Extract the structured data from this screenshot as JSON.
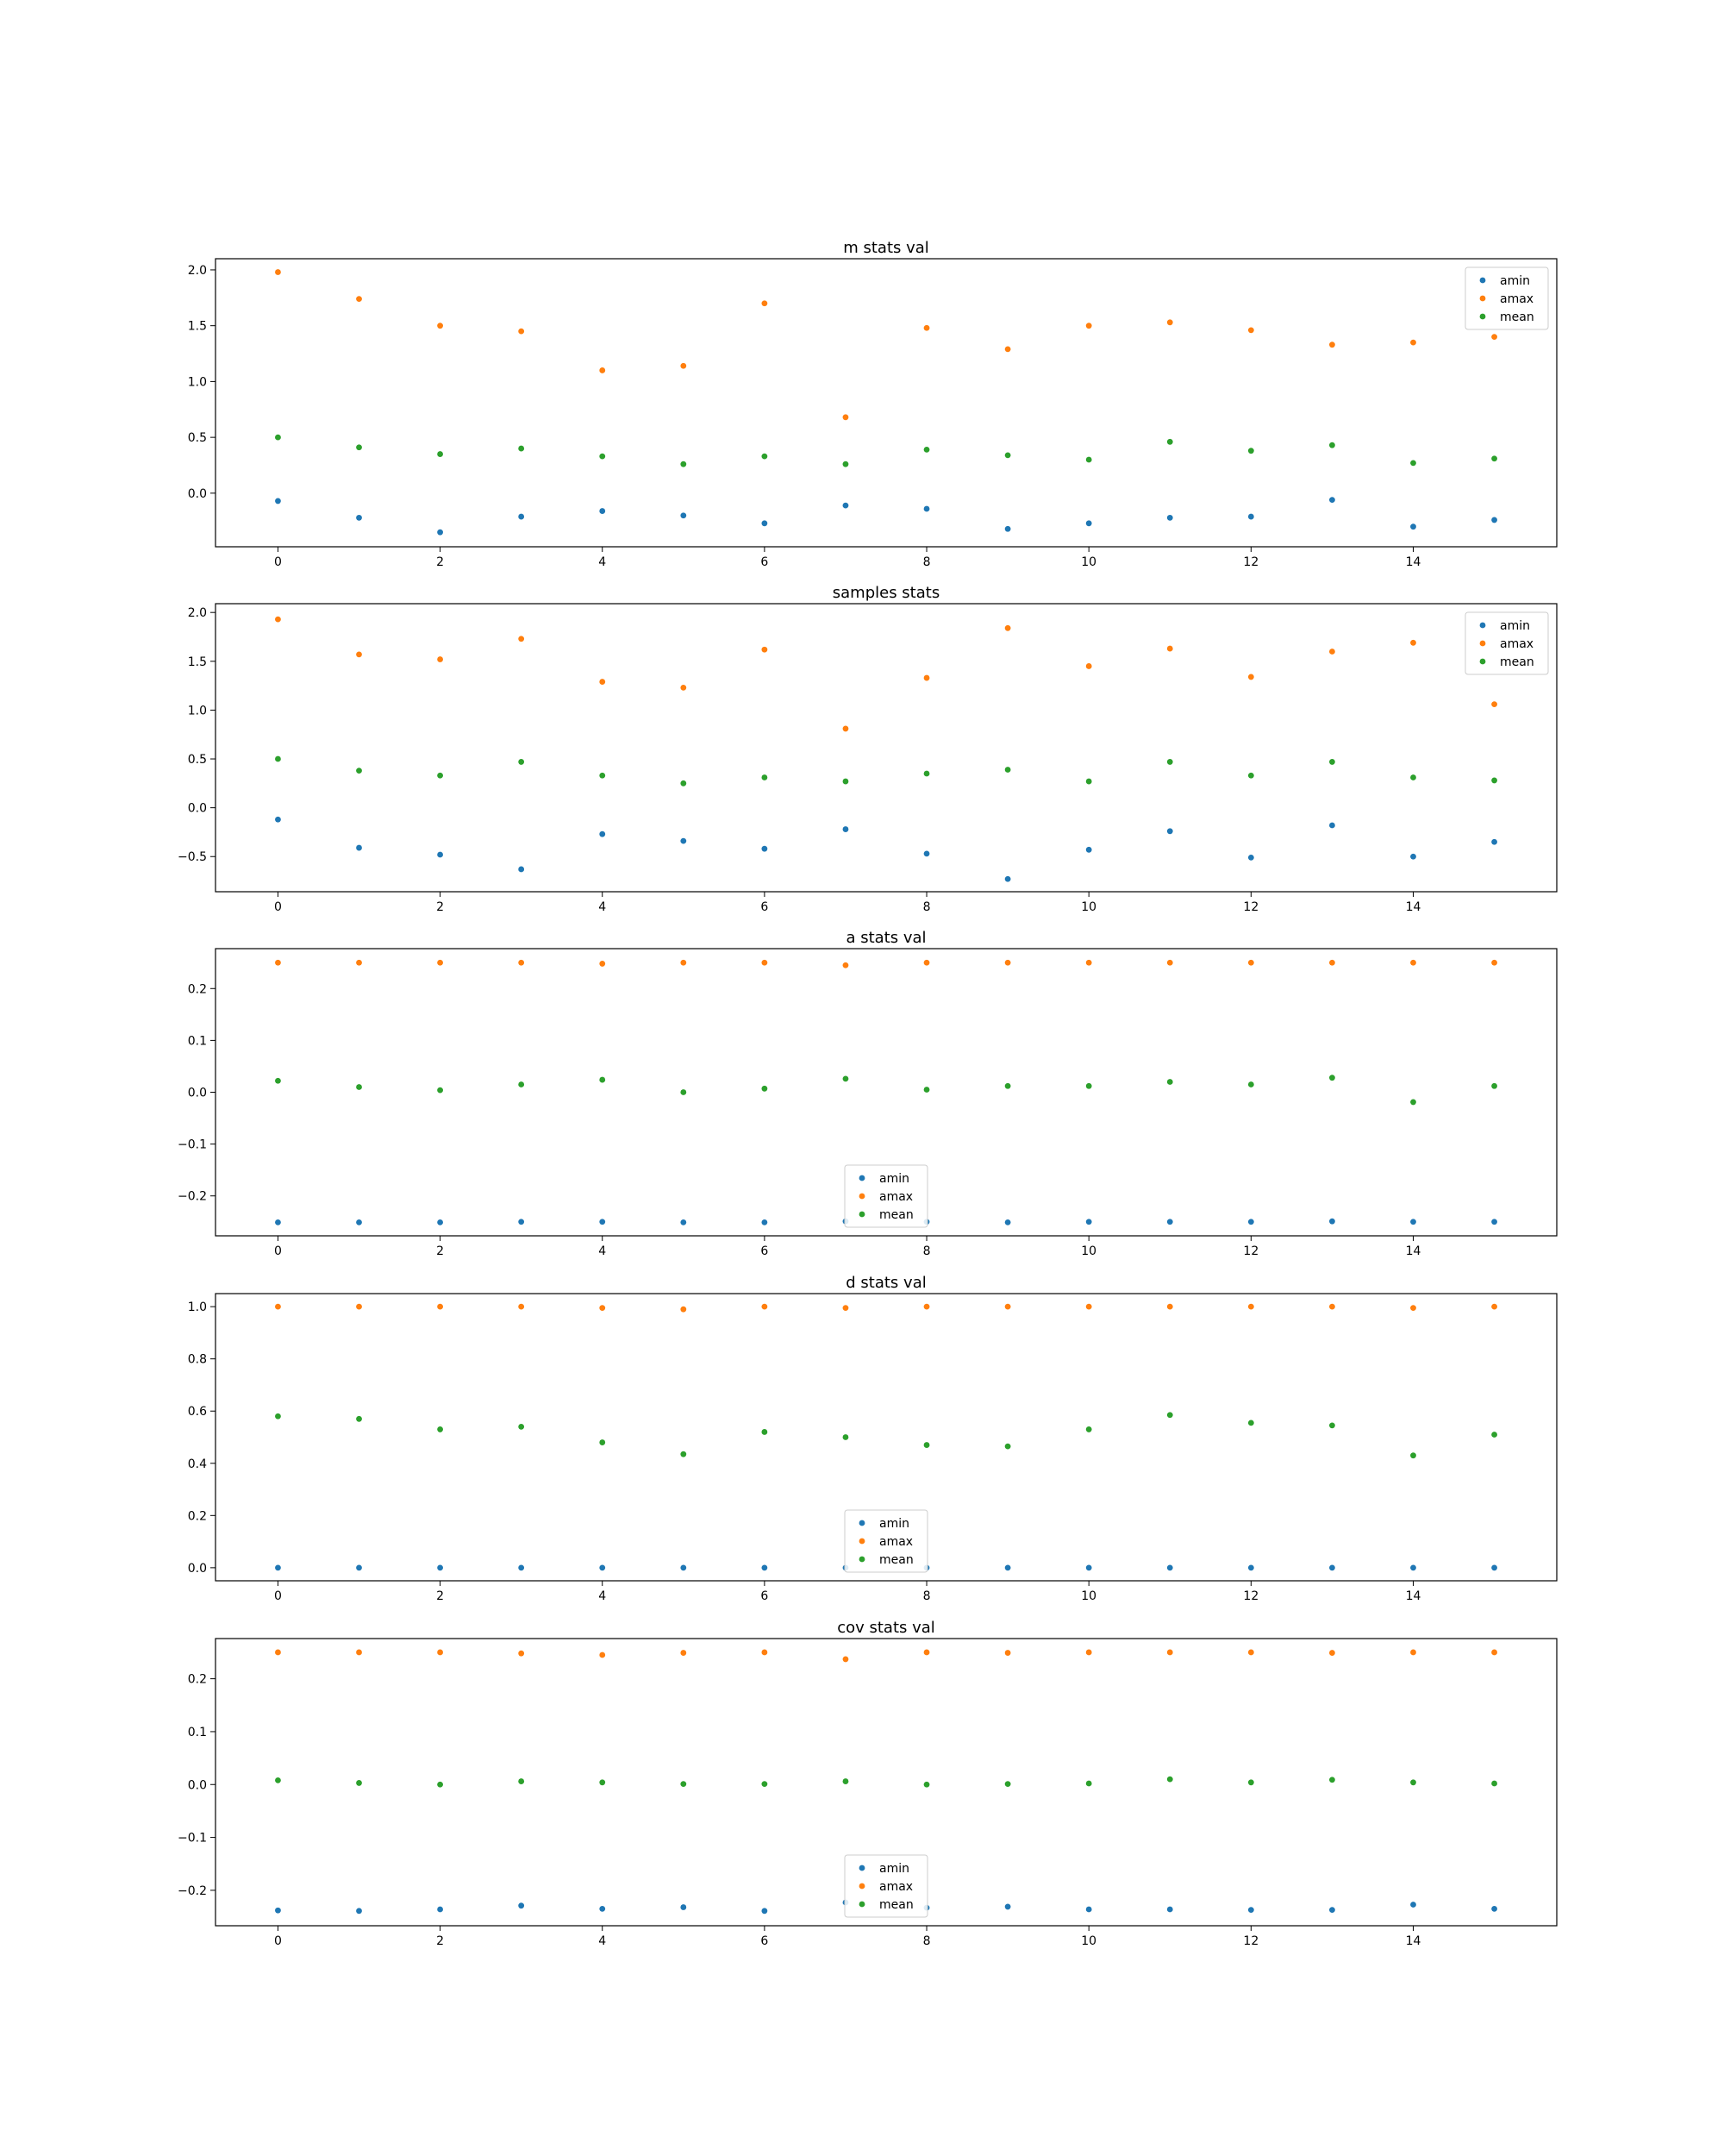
{
  "chart_data": [
    {
      "type": "scatter",
      "title": "m stats val",
      "legend_loc": "upper right",
      "xlim": [
        -0.77,
        15.77
      ],
      "ylim": [
        -0.48,
        2.1
      ],
      "xticks": [
        0,
        2,
        4,
        6,
        8,
        10,
        12,
        14
      ],
      "yticks": [
        0.0,
        0.5,
        1.0,
        1.5,
        2.0
      ],
      "ytick_labels": [
        "0.0",
        "0.5",
        "1.0",
        "1.5",
        "2.0"
      ],
      "x": [
        0,
        1,
        2,
        3,
        4,
        5,
        6,
        7,
        8,
        9,
        10,
        11,
        12,
        13,
        14,
        15
      ],
      "series": [
        {
          "name": "amin",
          "color": "#1f77b4",
          "values": [
            -0.07,
            -0.22,
            -0.35,
            -0.21,
            -0.16,
            -0.2,
            -0.27,
            -0.11,
            -0.14,
            -0.32,
            -0.27,
            -0.22,
            -0.21,
            -0.06,
            -0.3,
            -0.24
          ]
        },
        {
          "name": "amax",
          "color": "#ff7f0e",
          "values": [
            1.98,
            1.74,
            1.5,
            1.45,
            1.1,
            1.14,
            1.7,
            0.68,
            1.48,
            1.29,
            1.5,
            1.53,
            1.46,
            1.33,
            1.35,
            1.4
          ]
        },
        {
          "name": "mean",
          "color": "#2ca02c",
          "values": [
            0.5,
            0.41,
            0.35,
            0.4,
            0.33,
            0.26,
            0.33,
            0.26,
            0.39,
            0.34,
            0.3,
            0.46,
            0.38,
            0.43,
            0.27,
            0.31
          ]
        }
      ]
    },
    {
      "type": "scatter",
      "title": "samples stats",
      "legend_loc": "upper right",
      "xlim": [
        -0.77,
        15.77
      ],
      "ylim": [
        -0.86,
        2.09
      ],
      "xticks": [
        0,
        2,
        4,
        6,
        8,
        10,
        12,
        14
      ],
      "yticks": [
        -0.5,
        0.0,
        0.5,
        1.0,
        1.5,
        2.0
      ],
      "ytick_labels": [
        "−0.5",
        "0.0",
        "0.5",
        "1.0",
        "1.5",
        "2.0"
      ],
      "x": [
        0,
        1,
        2,
        3,
        4,
        5,
        6,
        7,
        8,
        9,
        10,
        11,
        12,
        13,
        14,
        15
      ],
      "series": [
        {
          "name": "amin",
          "color": "#1f77b4",
          "values": [
            -0.12,
            -0.41,
            -0.48,
            -0.63,
            -0.27,
            -0.34,
            -0.42,
            -0.22,
            -0.47,
            -0.73,
            -0.43,
            -0.24,
            -0.51,
            -0.18,
            -0.5,
            -0.35
          ]
        },
        {
          "name": "amax",
          "color": "#ff7f0e",
          "values": [
            1.93,
            1.57,
            1.52,
            1.73,
            1.29,
            1.23,
            1.62,
            0.81,
            1.33,
            1.84,
            1.45,
            1.63,
            1.34,
            1.6,
            1.69,
            1.06
          ]
        },
        {
          "name": "mean",
          "color": "#2ca02c",
          "values": [
            0.5,
            0.38,
            0.33,
            0.47,
            0.33,
            0.25,
            0.31,
            0.27,
            0.35,
            0.39,
            0.27,
            0.47,
            0.33,
            0.47,
            0.31,
            0.28
          ]
        }
      ]
    },
    {
      "type": "scatter",
      "title": "a stats val",
      "legend_loc": "lower center",
      "xlim": [
        -0.77,
        15.77
      ],
      "ylim": [
        -0.277,
        0.277
      ],
      "xticks": [
        0,
        2,
        4,
        6,
        8,
        10,
        12,
        14
      ],
      "yticks": [
        -0.2,
        -0.1,
        0.0,
        0.1,
        0.2
      ],
      "ytick_labels": [
        "−0.2",
        "−0.1",
        "0.0",
        "0.1",
        "0.2"
      ],
      "x": [
        0,
        1,
        2,
        3,
        4,
        5,
        6,
        7,
        8,
        9,
        10,
        11,
        12,
        13,
        14,
        15
      ],
      "series": [
        {
          "name": "amin",
          "color": "#1f77b4",
          "values": [
            -0.251,
            -0.251,
            -0.251,
            -0.25,
            -0.25,
            -0.251,
            -0.251,
            -0.249,
            -0.25,
            -0.251,
            -0.25,
            -0.25,
            -0.25,
            -0.249,
            -0.25,
            -0.25
          ]
        },
        {
          "name": "amax",
          "color": "#ff7f0e",
          "values": [
            0.25,
            0.25,
            0.25,
            0.25,
            0.248,
            0.25,
            0.25,
            0.245,
            0.25,
            0.25,
            0.25,
            0.25,
            0.25,
            0.25,
            0.25,
            0.25
          ]
        },
        {
          "name": "mean",
          "color": "#2ca02c",
          "values": [
            0.022,
            0.01,
            0.004,
            0.015,
            0.024,
            0.0,
            0.007,
            0.026,
            0.005,
            0.012,
            0.012,
            0.02,
            0.015,
            0.028,
            -0.019,
            0.012
          ]
        }
      ]
    },
    {
      "type": "scatter",
      "title": "d stats val",
      "legend_loc": "lower center",
      "xlim": [
        -0.77,
        15.77
      ],
      "ylim": [
        -0.05,
        1.05
      ],
      "xticks": [
        0,
        2,
        4,
        6,
        8,
        10,
        12,
        14
      ],
      "yticks": [
        0.0,
        0.2,
        0.4,
        0.6,
        0.8,
        1.0
      ],
      "ytick_labels": [
        "0.0",
        "0.2",
        "0.4",
        "0.6",
        "0.8",
        "1.0"
      ],
      "x": [
        0,
        1,
        2,
        3,
        4,
        5,
        6,
        7,
        8,
        9,
        10,
        11,
        12,
        13,
        14,
        15
      ],
      "series": [
        {
          "name": "amin",
          "color": "#1f77b4",
          "values": [
            0.0,
            0.0,
            0.0,
            0.0,
            0.0,
            0.0,
            0.0,
            0.0,
            0.0,
            0.0,
            0.0,
            0.0,
            0.0,
            0.0,
            0.0,
            0.0
          ]
        },
        {
          "name": "amax",
          "color": "#ff7f0e",
          "values": [
            1.0,
            1.0,
            1.0,
            1.0,
            0.995,
            0.99,
            1.0,
            0.995,
            1.0,
            1.0,
            1.0,
            1.0,
            1.0,
            1.0,
            0.995,
            1.0
          ]
        },
        {
          "name": "mean",
          "color": "#2ca02c",
          "values": [
            0.58,
            0.57,
            0.53,
            0.54,
            0.48,
            0.435,
            0.52,
            0.5,
            0.47,
            0.465,
            0.53,
            0.585,
            0.555,
            0.545,
            0.43,
            0.51
          ]
        }
      ]
    },
    {
      "type": "scatter",
      "title": "cov stats val",
      "legend_loc": "lower center",
      "xlim": [
        -0.77,
        15.77
      ],
      "ylim": [
        -0.267,
        0.276
      ],
      "xticks": [
        0,
        2,
        4,
        6,
        8,
        10,
        12,
        14
      ],
      "yticks": [
        -0.2,
        -0.1,
        0.0,
        0.1,
        0.2
      ],
      "ytick_labels": [
        "−0.2",
        "−0.1",
        "0.0",
        "0.1",
        "0.2"
      ],
      "x": [
        0,
        1,
        2,
        3,
        4,
        5,
        6,
        7,
        8,
        9,
        10,
        11,
        12,
        13,
        14,
        15
      ],
      "series": [
        {
          "name": "amin",
          "color": "#1f77b4",
          "values": [
            -0.238,
            -0.239,
            -0.236,
            -0.229,
            -0.235,
            -0.232,
            -0.239,
            -0.223,
            -0.233,
            -0.231,
            -0.236,
            -0.236,
            -0.237,
            -0.237,
            -0.227,
            -0.235
          ]
        },
        {
          "name": "amax",
          "color": "#ff7f0e",
          "values": [
            0.25,
            0.25,
            0.25,
            0.248,
            0.245,
            0.249,
            0.25,
            0.237,
            0.25,
            0.249,
            0.25,
            0.25,
            0.25,
            0.249,
            0.25,
            0.25
          ]
        },
        {
          "name": "mean",
          "color": "#2ca02c",
          "values": [
            0.008,
            0.003,
            0.0,
            0.006,
            0.004,
            0.001,
            0.001,
            0.006,
            0.0,
            0.001,
            0.002,
            0.01,
            0.004,
            0.009,
            0.004,
            0.002
          ]
        }
      ]
    }
  ]
}
